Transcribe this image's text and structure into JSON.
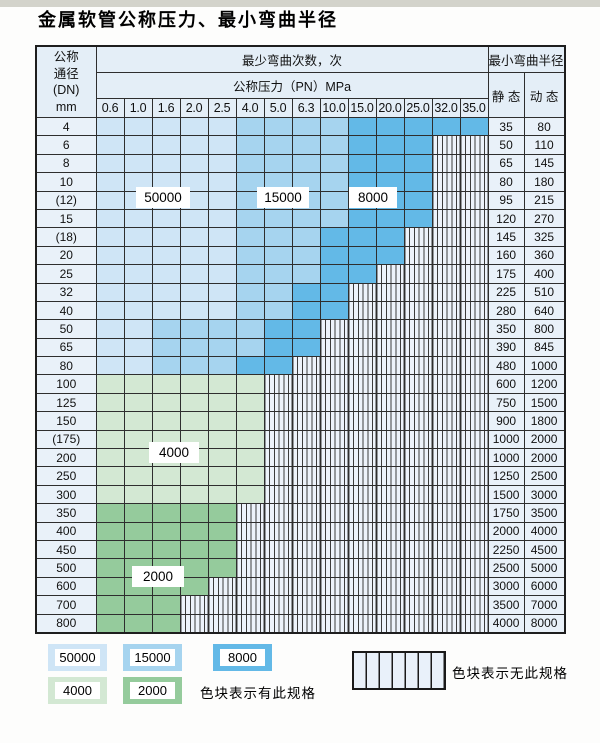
{
  "title": "金属软管公称压力、最小弯曲半径",
  "header": {
    "dn_lines": [
      "公称",
      "通径",
      "(DN)",
      "mm"
    ],
    "bend_cycles_label": "最少弯曲次数，次",
    "pressure_label": "公称压力（PN）MPa",
    "radius_label": "最小弯曲半径",
    "static_label": "静 态",
    "dynamic_label": "动 态",
    "pressure_columns": [
      "0.6",
      "1.0",
      "1.6",
      "2.0",
      "2.5",
      "4.0",
      "5.0",
      "6.3",
      "10.0",
      "15.0",
      "20.0",
      "25.0",
      "32.0",
      "35.0"
    ]
  },
  "overlays": {
    "c50000": "50000",
    "c15000": "15000",
    "c8000": "8000",
    "c4000": "4000",
    "c2000": "2000"
  },
  "legend": {
    "items": [
      {
        "label": "50000",
        "cycles": 50000
      },
      {
        "label": "15000",
        "cycles": 15000
      },
      {
        "label": "8000",
        "cycles": 8000
      },
      {
        "label": "4000",
        "cycles": 4000
      },
      {
        "label": "2000",
        "cycles": 2000
      }
    ],
    "has_spec_note": "色块表示有此规格",
    "no_spec_note": "色块表示无此规格"
  },
  "colors": {
    "cycle_50000": "#cfe5f6",
    "cycle_15000": "#a6d4ef",
    "cycle_8000": "#63b9e7",
    "cycle_4000": "#d3e8d3",
    "cycle_2000": "#95cb9c",
    "hatch_bg": "#edf3fb",
    "label_col_bg": "#e9f1f9",
    "header_bg": "#e4eef7",
    "border": "#2e2e2e"
  },
  "chart_data": {
    "type": "heatmap",
    "title": "金属软管公称压力、最小弯曲半径",
    "x_label": "公称压力（PN）MPa",
    "y_label": "公称通径(DN) mm",
    "value_meaning": "最少弯曲次数，次 (null = 无此规格)",
    "columns": [
      0.6,
      1.0,
      1.6,
      2.0,
      2.5,
      4.0,
      5.0,
      6.3,
      10.0,
      15.0,
      20.0,
      25.0,
      32.0,
      35.0
    ],
    "radius_columns": [
      "静态",
      "动态"
    ],
    "legend_position": "bottom",
    "rows": [
      {
        "dn": "4",
        "static": 35,
        "dynamic": 80,
        "cycles": [
          50000,
          50000,
          50000,
          50000,
          50000,
          15000,
          15000,
          15000,
          15000,
          8000,
          8000,
          8000,
          8000,
          8000
        ]
      },
      {
        "dn": "6",
        "static": 50,
        "dynamic": 110,
        "cycles": [
          50000,
          50000,
          50000,
          50000,
          50000,
          15000,
          15000,
          15000,
          15000,
          8000,
          8000,
          8000,
          null,
          null
        ]
      },
      {
        "dn": "8",
        "static": 65,
        "dynamic": 145,
        "cycles": [
          50000,
          50000,
          50000,
          50000,
          50000,
          15000,
          15000,
          15000,
          15000,
          8000,
          8000,
          8000,
          null,
          null
        ]
      },
      {
        "dn": "10",
        "static": 80,
        "dynamic": 180,
        "cycles": [
          50000,
          50000,
          50000,
          50000,
          50000,
          15000,
          15000,
          15000,
          15000,
          8000,
          8000,
          8000,
          null,
          null
        ]
      },
      {
        "dn": "(12)",
        "static": 95,
        "dynamic": 215,
        "cycles": [
          50000,
          50000,
          50000,
          50000,
          50000,
          15000,
          15000,
          15000,
          15000,
          8000,
          8000,
          8000,
          null,
          null
        ]
      },
      {
        "dn": "15",
        "static": 120,
        "dynamic": 270,
        "cycles": [
          50000,
          50000,
          50000,
          50000,
          50000,
          15000,
          15000,
          15000,
          15000,
          8000,
          8000,
          8000,
          null,
          null
        ]
      },
      {
        "dn": "(18)",
        "static": 145,
        "dynamic": 325,
        "cycles": [
          50000,
          50000,
          50000,
          50000,
          50000,
          15000,
          15000,
          15000,
          8000,
          8000,
          8000,
          null,
          null,
          null
        ]
      },
      {
        "dn": "20",
        "static": 160,
        "dynamic": 360,
        "cycles": [
          50000,
          50000,
          50000,
          50000,
          50000,
          15000,
          15000,
          15000,
          8000,
          8000,
          8000,
          null,
          null,
          null
        ]
      },
      {
        "dn": "25",
        "static": 175,
        "dynamic": 400,
        "cycles": [
          50000,
          50000,
          50000,
          50000,
          50000,
          15000,
          15000,
          15000,
          8000,
          8000,
          null,
          null,
          null,
          null
        ]
      },
      {
        "dn": "32",
        "static": 225,
        "dynamic": 510,
        "cycles": [
          50000,
          50000,
          50000,
          50000,
          50000,
          15000,
          15000,
          8000,
          8000,
          null,
          null,
          null,
          null,
          null
        ]
      },
      {
        "dn": "40",
        "static": 280,
        "dynamic": 640,
        "cycles": [
          50000,
          50000,
          50000,
          50000,
          50000,
          15000,
          15000,
          8000,
          8000,
          null,
          null,
          null,
          null,
          null
        ]
      },
      {
        "dn": "50",
        "static": 350,
        "dynamic": 800,
        "cycles": [
          50000,
          50000,
          15000,
          15000,
          15000,
          15000,
          8000,
          8000,
          null,
          null,
          null,
          null,
          null,
          null
        ]
      },
      {
        "dn": "65",
        "static": 390,
        "dynamic": 845,
        "cycles": [
          50000,
          50000,
          15000,
          15000,
          15000,
          15000,
          8000,
          8000,
          null,
          null,
          null,
          null,
          null,
          null
        ]
      },
      {
        "dn": "80",
        "static": 480,
        "dynamic": 1000,
        "cycles": [
          50000,
          50000,
          15000,
          15000,
          15000,
          8000,
          8000,
          null,
          null,
          null,
          null,
          null,
          null,
          null
        ]
      },
      {
        "dn": "100",
        "static": 600,
        "dynamic": 1200,
        "cycles": [
          4000,
          4000,
          4000,
          4000,
          4000,
          4000,
          null,
          null,
          null,
          null,
          null,
          null,
          null,
          null
        ]
      },
      {
        "dn": "125",
        "static": 750,
        "dynamic": 1500,
        "cycles": [
          4000,
          4000,
          4000,
          4000,
          4000,
          4000,
          null,
          null,
          null,
          null,
          null,
          null,
          null,
          null
        ]
      },
      {
        "dn": "150",
        "static": 900,
        "dynamic": 1800,
        "cycles": [
          4000,
          4000,
          4000,
          4000,
          4000,
          4000,
          null,
          null,
          null,
          null,
          null,
          null,
          null,
          null
        ]
      },
      {
        "dn": "(175)",
        "static": 1000,
        "dynamic": 2000,
        "cycles": [
          4000,
          4000,
          4000,
          4000,
          4000,
          4000,
          null,
          null,
          null,
          null,
          null,
          null,
          null,
          null
        ]
      },
      {
        "dn": "200",
        "static": 1000,
        "dynamic": 2000,
        "cycles": [
          4000,
          4000,
          4000,
          4000,
          4000,
          4000,
          null,
          null,
          null,
          null,
          null,
          null,
          null,
          null
        ]
      },
      {
        "dn": "250",
        "static": 1250,
        "dynamic": 2500,
        "cycles": [
          4000,
          4000,
          4000,
          4000,
          4000,
          4000,
          null,
          null,
          null,
          null,
          null,
          null,
          null,
          null
        ]
      },
      {
        "dn": "300",
        "static": 1500,
        "dynamic": 3000,
        "cycles": [
          4000,
          4000,
          4000,
          4000,
          4000,
          4000,
          null,
          null,
          null,
          null,
          null,
          null,
          null,
          null
        ]
      },
      {
        "dn": "350",
        "static": 1750,
        "dynamic": 3500,
        "cycles": [
          2000,
          2000,
          2000,
          2000,
          2000,
          null,
          null,
          null,
          null,
          null,
          null,
          null,
          null,
          null
        ]
      },
      {
        "dn": "400",
        "static": 2000,
        "dynamic": 4000,
        "cycles": [
          2000,
          2000,
          2000,
          2000,
          2000,
          null,
          null,
          null,
          null,
          null,
          null,
          null,
          null,
          null
        ]
      },
      {
        "dn": "450",
        "static": 2250,
        "dynamic": 4500,
        "cycles": [
          2000,
          2000,
          2000,
          2000,
          2000,
          null,
          null,
          null,
          null,
          null,
          null,
          null,
          null,
          null
        ]
      },
      {
        "dn": "500",
        "static": 2500,
        "dynamic": 5000,
        "cycles": [
          2000,
          2000,
          2000,
          2000,
          2000,
          null,
          null,
          null,
          null,
          null,
          null,
          null,
          null,
          null
        ]
      },
      {
        "dn": "600",
        "static": 3000,
        "dynamic": 6000,
        "cycles": [
          2000,
          2000,
          2000,
          2000,
          null,
          null,
          null,
          null,
          null,
          null,
          null,
          null,
          null,
          null
        ]
      },
      {
        "dn": "700",
        "static": 3500,
        "dynamic": 7000,
        "cycles": [
          2000,
          2000,
          2000,
          null,
          null,
          null,
          null,
          null,
          null,
          null,
          null,
          null,
          null,
          null
        ]
      },
      {
        "dn": "800",
        "static": 4000,
        "dynamic": 8000,
        "cycles": [
          2000,
          2000,
          2000,
          null,
          null,
          null,
          null,
          null,
          null,
          null,
          null,
          null,
          null,
          null
        ]
      }
    ]
  }
}
